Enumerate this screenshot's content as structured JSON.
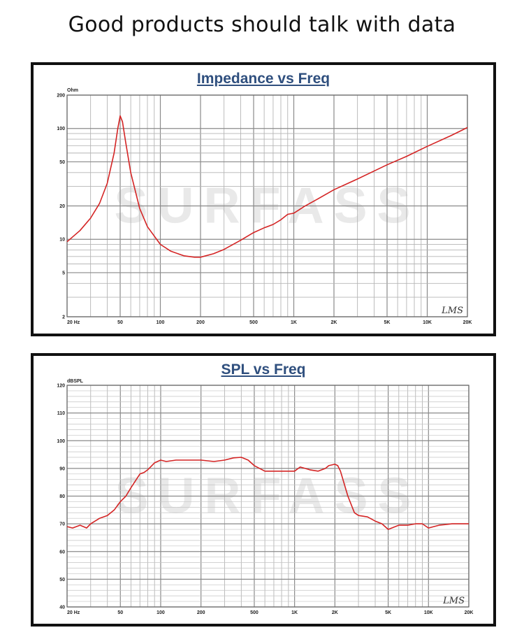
{
  "headline": "Good products should talk with data",
  "chart_data": [
    {
      "type": "line",
      "title": "Impedance vs Freq",
      "y_unit": "Ohm",
      "x_scale": "log",
      "y_scale": "log",
      "xlim": [
        20,
        20000
      ],
      "ylim": [
        2,
        200
      ],
      "x_ticks": [
        20,
        50,
        100,
        200,
        500,
        1000,
        2000,
        5000,
        10000,
        20000
      ],
      "x_tick_labels": [
        "20 Hz",
        "50",
        "100",
        "200",
        "500",
        "1K",
        "2K",
        "5K",
        "10K",
        "20K"
      ],
      "y_ticks": [
        2,
        5,
        10,
        20,
        50,
        100,
        200
      ],
      "y_tick_labels": [
        "2",
        "5",
        "10",
        "20",
        "50",
        "100",
        "200"
      ],
      "grid": true,
      "watermark": "SURFASS",
      "logo": "LMS",
      "line_color": "#d42424",
      "series": [
        {
          "x": [
            20,
            25,
            30,
            35,
            40,
            45,
            48,
            50,
            52,
            55,
            60,
            70,
            80,
            100,
            120,
            150,
            180,
            200,
            250,
            300,
            400,
            500,
            600,
            700,
            800,
            900,
            1000,
            1200,
            1500,
            2000,
            3000,
            5000,
            7000,
            10000,
            15000,
            20000
          ],
          "y": [
            9.5,
            12,
            15.5,
            21,
            32,
            60,
            100,
            130,
            115,
            75,
            40,
            19,
            13,
            9,
            7.8,
            7.1,
            6.9,
            6.9,
            7.4,
            8.1,
            9.8,
            11.5,
            12.7,
            13.6,
            15,
            16.8,
            17.2,
            19.8,
            23,
            28,
            35,
            47,
            56,
            69,
            86,
            102
          ]
        }
      ]
    },
    {
      "type": "line",
      "title": "SPL vs Freq",
      "y_unit": "dBSPL",
      "x_scale": "log",
      "xlim": [
        20,
        20000
      ],
      "ylim": [
        40,
        120
      ],
      "x_ticks": [
        20,
        50,
        100,
        200,
        500,
        1000,
        2000,
        5000,
        10000,
        20000
      ],
      "x_tick_labels": [
        "20 Hz",
        "50",
        "100",
        "200",
        "500",
        "1K",
        "2K",
        "5K",
        "10K",
        "20K"
      ],
      "y_ticks": [
        40,
        50,
        60,
        70,
        80,
        90,
        100,
        110,
        120
      ],
      "y_tick_labels": [
        "40",
        "50",
        "60",
        "70",
        "80",
        "90",
        "100",
        "110",
        "120"
      ],
      "grid": true,
      "watermark": "SURFASS",
      "logo": "LMS",
      "line_color": "#d42424",
      "series": [
        {
          "x": [
            20,
            22,
            25,
            28,
            30,
            35,
            40,
            45,
            50,
            55,
            60,
            70,
            75,
            80,
            90,
            100,
            110,
            130,
            150,
            180,
            200,
            250,
            300,
            350,
            400,
            450,
            500,
            600,
            700,
            800,
            900,
            1000,
            1100,
            1200,
            1300,
            1500,
            1700,
            1800,
            2000,
            2100,
            2200,
            2500,
            2800,
            3000,
            3500,
            4000,
            4500,
            5000,
            6000,
            7000,
            8000,
            9000,
            10000,
            12000,
            15000,
            20000
          ],
          "y": [
            69,
            68.5,
            69.5,
            68.5,
            70,
            72,
            73,
            75,
            78,
            80,
            83,
            88,
            88.5,
            89.5,
            92,
            93,
            92.5,
            93,
            93,
            93,
            93,
            92.5,
            93,
            93.8,
            94,
            93,
            91,
            89,
            89,
            89,
            89,
            89,
            90.5,
            90,
            89.5,
            89,
            90,
            91,
            91.5,
            91,
            89,
            80,
            74,
            73,
            72.5,
            71,
            70,
            68,
            69.5,
            69.5,
            70,
            70,
            68.5,
            69.5,
            70,
            70
          ]
        }
      ]
    }
  ]
}
